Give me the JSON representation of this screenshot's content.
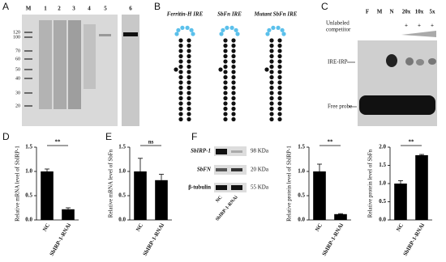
{
  "panels": {
    "a": {
      "letter": "A",
      "lanes": [
        "M",
        "1",
        "2",
        "3",
        "4",
        "5",
        "6"
      ],
      "markers": [
        "120",
        "100",
        "70",
        "60",
        "50",
        "40",
        "30",
        "20"
      ]
    },
    "b": {
      "letter": "B",
      "titles": [
        "Ferritin-H IRE",
        "SbFn IRE",
        "Mutant SbFn IRE"
      ]
    },
    "c": {
      "letter": "C",
      "lanes": [
        "F",
        "M",
        "N",
        "20x",
        "10x",
        "5x"
      ],
      "competitor": [
        "Unlabeled",
        "competitor"
      ],
      "plus": [
        "+",
        "+",
        "+"
      ],
      "complex": "IRE-IRP",
      "free": "Free probe"
    },
    "d": {
      "letter": "D"
    },
    "e": {
      "letter": "E"
    },
    "f": {
      "letter": "F",
      "proteins": [
        "SbIRP-1",
        "SbFN",
        "β-tubulin"
      ],
      "sizes": [
        "98 KDa",
        "20 KDa",
        "55 KDa"
      ],
      "lanes": [
        "NC",
        "SbIRP-1-RNAi"
      ]
    }
  },
  "chart_data": [
    {
      "type": "bar",
      "ylabel": "Relative mRNA level of SbIRP-1",
      "categories": [
        "NC",
        "SbIRP-1-RNAi"
      ],
      "values": [
        1.0,
        0.22
      ],
      "errors": [
        0.05,
        0.03
      ],
      "color": "#000000",
      "ylim": [
        0,
        1.5
      ],
      "yticks": [
        {
          "value": 0,
          "label": "0.0"
        },
        0.5,
        {
          "value": 1,
          "label": "1.0"
        },
        1.5
      ],
      "annotation": "**"
    },
    {
      "type": "bar",
      "ylabel": "Relative mRNA level of SbFn",
      "categories": [
        "NC",
        "SbIRP-1-RNAi"
      ],
      "values": [
        1.0,
        0.82
      ],
      "errors": [
        0.27,
        0.12
      ],
      "color": "#000000",
      "ylim": [
        0,
        1.5
      ],
      "yticks": [
        {
          "value": 0,
          "label": "0.0"
        },
        0.5,
        {
          "value": 1,
          "label": "1.0"
        },
        1.5
      ],
      "annotation": "ns"
    },
    {
      "type": "bar",
      "ylabel": "Relative protein level of SbIRP-1",
      "categories": [
        "NC",
        "SbIRP-1-RNAi"
      ],
      "values": [
        1.0,
        0.12
      ],
      "errors": [
        0.15,
        0.01
      ],
      "color": "#000000",
      "ylim": [
        0,
        1.5
      ],
      "yticks": [
        {
          "value": 0,
          "label": "0.0"
        },
        0.5,
        {
          "value": 1,
          "label": "1.0"
        },
        1.5
      ],
      "annotation": "**"
    },
    {
      "type": "bar",
      "ylabel": "Relative protein level of SbFn",
      "categories": [
        "NC",
        "SbIRP-1-RNAi"
      ],
      "values": [
        1.0,
        1.78
      ],
      "errors": [
        0.08,
        0.02
      ],
      "color": "#000000",
      "ylim": [
        0,
        2
      ],
      "yticks": [
        {
          "value": 0,
          "label": "0.0"
        },
        0.5,
        {
          "value": 1,
          "label": "1.0"
        },
        1.5,
        {
          "value": 2,
          "label": "2.0"
        }
      ],
      "annotation": "**"
    }
  ]
}
